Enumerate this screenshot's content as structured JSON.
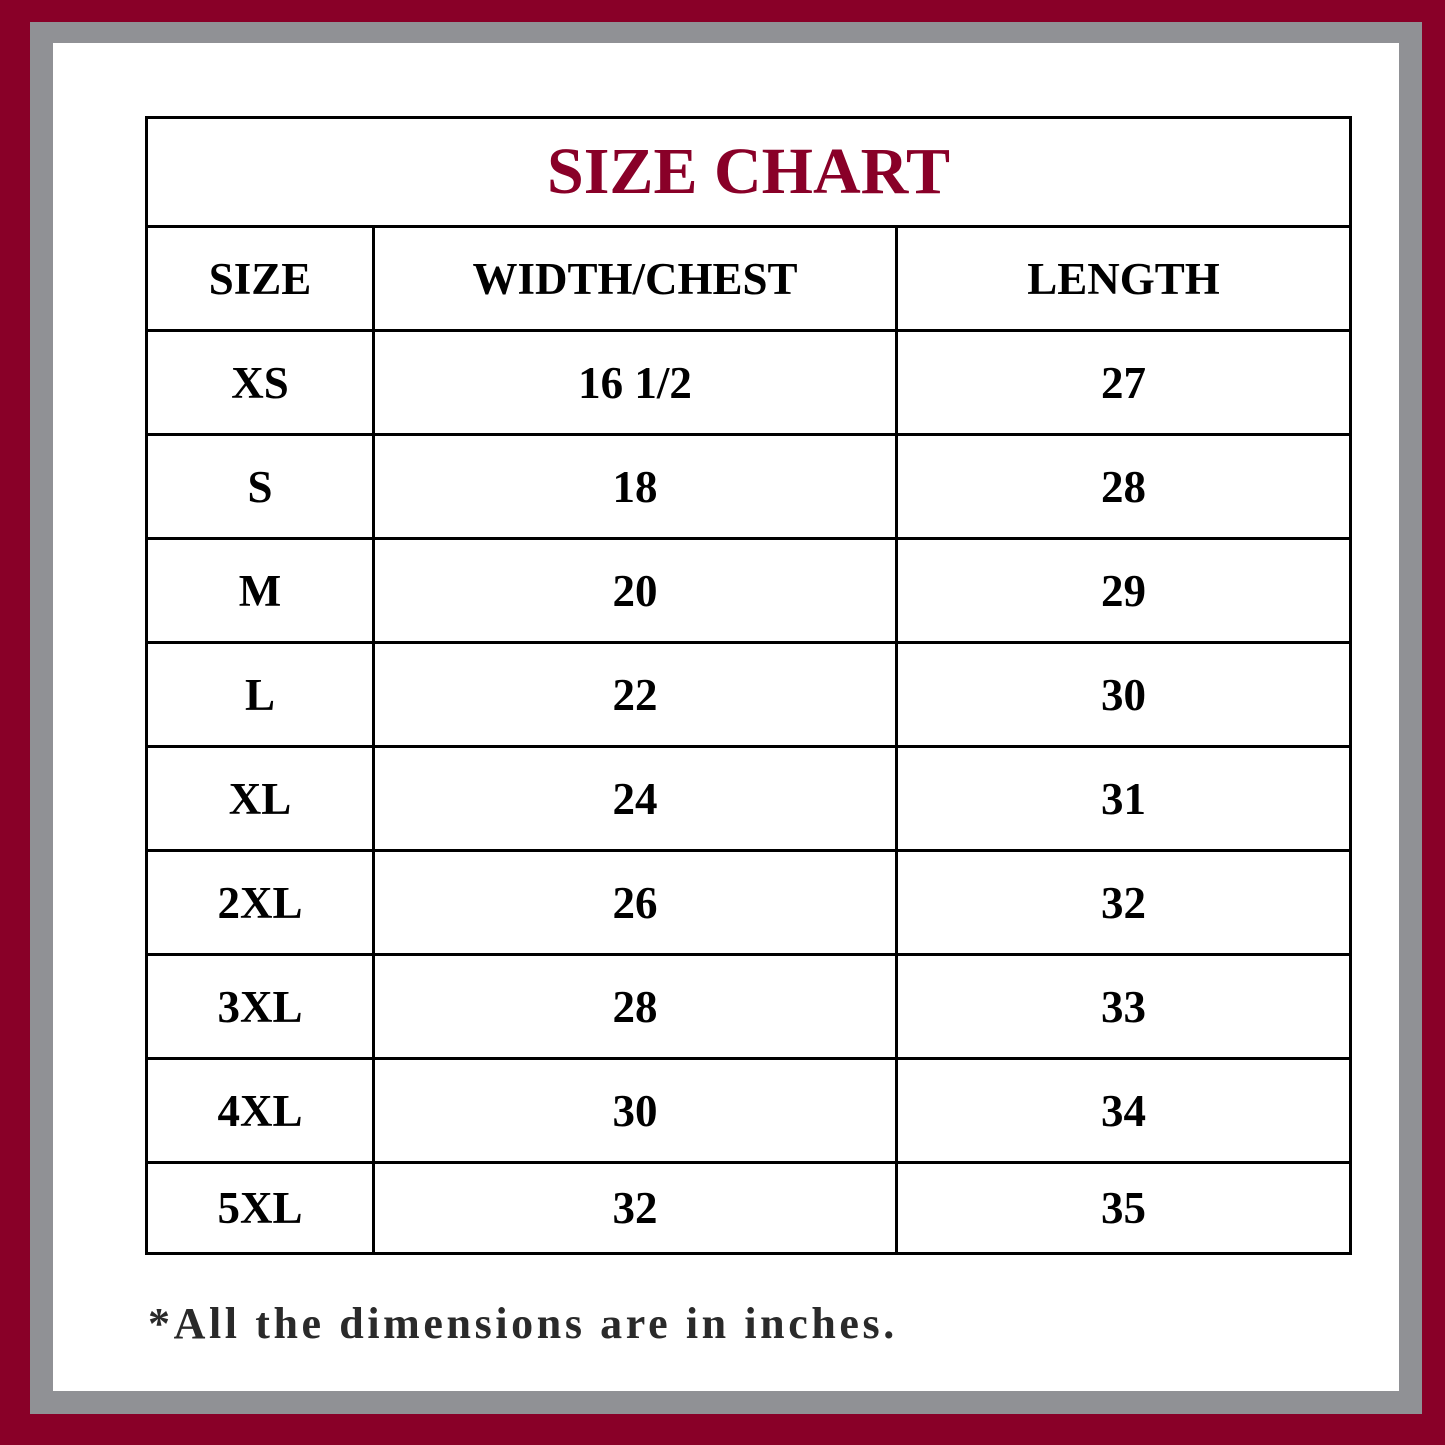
{
  "colors": {
    "outer_border": "#890028",
    "inner_border": "#909195",
    "title": "#890028"
  },
  "title": "SIZE CHART",
  "headers": [
    "SIZE",
    "WIDTH/CHEST",
    "LENGTH"
  ],
  "rows": [
    [
      "XS",
      "16 1/2",
      "27"
    ],
    [
      "S",
      "18",
      "28"
    ],
    [
      "M",
      "20",
      "29"
    ],
    [
      "L",
      "22",
      "30"
    ],
    [
      "XL",
      "24",
      "31"
    ],
    [
      "2XL",
      "26",
      "32"
    ],
    [
      "3XL",
      "28",
      "33"
    ],
    [
      "4XL",
      "30",
      "34"
    ],
    [
      "5XL",
      "32",
      "35"
    ]
  ],
  "footnote": "*All the dimensions are in inches."
}
